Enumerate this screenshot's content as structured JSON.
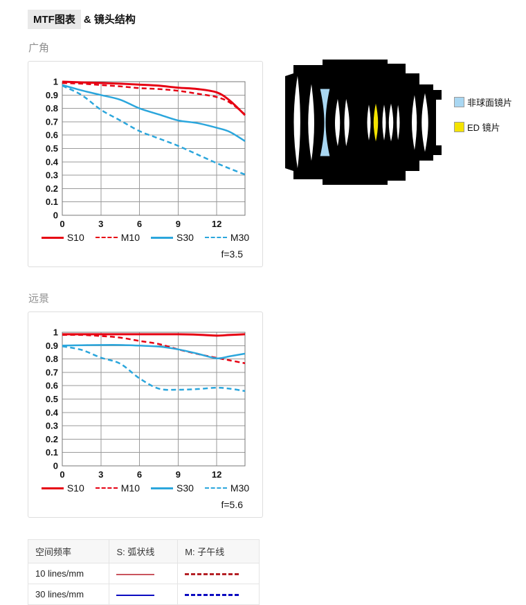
{
  "header": {
    "title_highlight": "MTF图表",
    "title_rest": "& 镜头结构"
  },
  "sections": {
    "wide": {
      "heading": "广角"
    },
    "tele": {
      "heading": "远景"
    }
  },
  "chart_data": [
    {
      "type": "line",
      "title": "广角 MTF",
      "f_label": "f=3.5",
      "xlim": [
        0,
        14.2
      ],
      "ylim": [
        0,
        1
      ],
      "xticks": [
        0,
        3,
        6,
        9,
        12
      ],
      "ytick_step": 0.1,
      "grid": true,
      "legend_position": "bottom",
      "x": [
        0,
        1.5,
        3,
        4.5,
        6,
        7.5,
        9,
        10.5,
        12,
        13,
        14.2
      ],
      "series": [
        {
          "name": "S10",
          "color": "#e60012",
          "dash": false,
          "width": 3,
          "values": [
            1.0,
            0.995,
            0.99,
            0.985,
            0.978,
            0.97,
            0.955,
            0.945,
            0.92,
            0.86,
            0.75
          ]
        },
        {
          "name": "M10",
          "color": "#e60012",
          "dash": true,
          "width": 2.5,
          "values": [
            0.99,
            0.985,
            0.975,
            0.965,
            0.952,
            0.945,
            0.932,
            0.91,
            0.885,
            0.845,
            0.755
          ]
        },
        {
          "name": "S30",
          "color": "#2ba6dc",
          "dash": false,
          "width": 2.5,
          "values": [
            0.975,
            0.935,
            0.9,
            0.865,
            0.8,
            0.755,
            0.71,
            0.69,
            0.655,
            0.625,
            0.555
          ]
        },
        {
          "name": "M30",
          "color": "#2ba6dc",
          "dash": true,
          "width": 2.5,
          "values": [
            0.97,
            0.9,
            0.79,
            0.71,
            0.63,
            0.575,
            0.52,
            0.455,
            0.39,
            0.35,
            0.305
          ]
        }
      ]
    },
    {
      "type": "line",
      "title": "远景 MTF",
      "f_label": "f=5.6",
      "xlim": [
        0,
        14.2
      ],
      "ylim": [
        0,
        1
      ],
      "xticks": [
        0,
        3,
        6,
        9,
        12
      ],
      "ytick_step": 0.1,
      "grid": true,
      "legend_position": "bottom",
      "x": [
        0,
        1.5,
        3,
        4.5,
        6,
        7.5,
        9,
        10.5,
        12,
        13,
        14.2
      ],
      "series": [
        {
          "name": "S10",
          "color": "#e60012",
          "dash": false,
          "width": 3,
          "values": [
            0.985,
            0.985,
            0.985,
            0.985,
            0.985,
            0.985,
            0.985,
            0.982,
            0.975,
            0.98,
            0.985
          ]
        },
        {
          "name": "M10",
          "color": "#e60012",
          "dash": true,
          "width": 2.5,
          "values": [
            0.98,
            0.98,
            0.972,
            0.96,
            0.935,
            0.912,
            0.872,
            0.838,
            0.808,
            0.79,
            0.768
          ]
        },
        {
          "name": "S30",
          "color": "#2ba6dc",
          "dash": false,
          "width": 2.5,
          "values": [
            0.9,
            0.903,
            0.905,
            0.905,
            0.9,
            0.893,
            0.872,
            0.84,
            0.805,
            0.82,
            0.84
          ]
        },
        {
          "name": "M30",
          "color": "#2ba6dc",
          "dash": true,
          "width": 2.5,
          "values": [
            0.895,
            0.868,
            0.81,
            0.765,
            0.655,
            0.578,
            0.57,
            0.575,
            0.585,
            0.578,
            0.56
          ]
        }
      ]
    }
  ],
  "lens": {
    "element_colors": {
      "aspherical": "#a9d7f2",
      "ed": "#f4e300"
    },
    "legend": [
      {
        "label": "非球面镜片",
        "color": "#a9d7f2"
      },
      {
        "label": "ED 镜片",
        "color": "#f4e300"
      }
    ]
  },
  "table": {
    "headers": [
      "空间频率",
      "S: 弧状线",
      "M: 子午线"
    ],
    "rows": [
      {
        "label": "10 lines/mm",
        "solid_color": "#c9545e",
        "dashed_color": "#b52025"
      },
      {
        "label": "30 lines/mm",
        "solid_color": "#0a0ac0",
        "dashed_color": "#0a0ac0"
      }
    ]
  }
}
